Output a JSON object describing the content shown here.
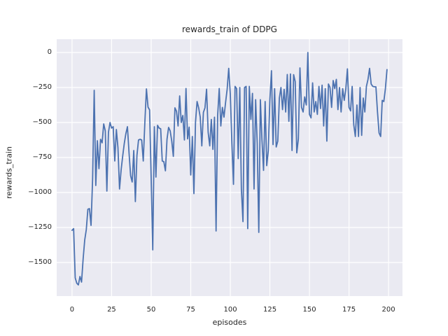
{
  "chart_data": {
    "type": "line",
    "title": "rewards_train of DDPG",
    "xlabel": "episodes",
    "ylabel": "rewards_train",
    "x_description": "episode index, one point per episode, 0 to 199",
    "xlim": [
      -9.7,
      208.8
    ],
    "ylim": [
      -1740,
      95
    ],
    "grid": true,
    "legend": false,
    "xticks": {
      "values": [
        0,
        25,
        50,
        75,
        100,
        125,
        150,
        175,
        200
      ],
      "labels": [
        "0",
        "25",
        "50",
        "75",
        "100",
        "125",
        "150",
        "175",
        "200"
      ]
    },
    "yticks": {
      "values": [
        0,
        -250,
        -500,
        -750,
        -1000,
        -1250,
        -1500
      ],
      "labels": [
        "0",
        "−250",
        "−500",
        "−750",
        "−1000",
        "−1250",
        "−1500"
      ]
    },
    "colors": {
      "line": "#4C72B0",
      "plot_background": "#EAEAF2",
      "grid": "#FFFFFF",
      "text": "#262626",
      "figure_background": "#FFFFFF"
    },
    "values": [
      -1270,
      -1258,
      -1610,
      -1648,
      -1660,
      -1600,
      -1640,
      -1475,
      -1340,
      -1265,
      -1120,
      -1115,
      -1235,
      -900,
      -270,
      -950,
      -630,
      -830,
      -620,
      -645,
      -510,
      -560,
      -990,
      -570,
      -500,
      -540,
      -530,
      -775,
      -550,
      -680,
      -975,
      -840,
      -740,
      -650,
      -580,
      -530,
      -715,
      -880,
      -925,
      -700,
      -1065,
      -735,
      -625,
      -620,
      -625,
      -775,
      -500,
      -260,
      -390,
      -410,
      -900,
      -1410,
      -530,
      -890,
      -520,
      -540,
      -545,
      -775,
      -780,
      -845,
      -620,
      -535,
      -560,
      -633,
      -742,
      -395,
      -420,
      -525,
      -310,
      -500,
      -450,
      -625,
      -257,
      -617,
      -533,
      -875,
      -600,
      -1008,
      -500,
      -350,
      -395,
      -462,
      -667,
      -428,
      -395,
      -262,
      -570,
      -667,
      -478,
      -692,
      -462,
      -1275,
      -450,
      -257,
      -525,
      -392,
      -462,
      -358,
      -263,
      -113,
      -300,
      -650,
      -942,
      -242,
      -258,
      -758,
      -250,
      -975,
      -1208,
      -250,
      -242,
      -1258,
      -242,
      -478,
      -292,
      -975,
      -337,
      -650,
      -1285,
      -337,
      -625,
      -842,
      -350,
      -808,
      -700,
      -337,
      -130,
      -658,
      -258,
      -675,
      -633,
      -325,
      -250,
      -408,
      -263,
      -425,
      -157,
      -492,
      -153,
      -700,
      -158,
      -208,
      -717,
      -617,
      -110,
      -392,
      -425,
      -317,
      -375,
      0,
      -442,
      -467,
      -217,
      -425,
      -350,
      -442,
      -242,
      -400,
      -233,
      -525,
      -258,
      -633,
      -225,
      -250,
      -392,
      -200,
      -258,
      -192,
      -408,
      -250,
      -425,
      -258,
      -342,
      -258,
      -117,
      -392,
      -417,
      -242,
      -517,
      -600,
      -375,
      -600,
      -250,
      -592,
      -325,
      -425,
      -242,
      -192,
      -113,
      -225,
      -242,
      -245,
      -245,
      -425,
      -575,
      -600,
      -342,
      -350,
      -258,
      -122
    ]
  }
}
